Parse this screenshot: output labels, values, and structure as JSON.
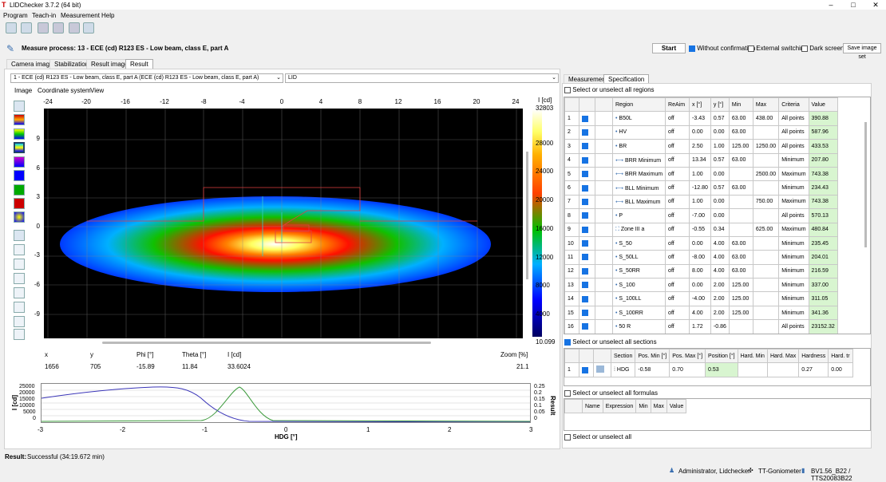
{
  "app": {
    "title": "LIDChecker 3.7.2 (64 bit)"
  },
  "menu": [
    "Program",
    "Teach-in",
    "Measurement",
    "Help"
  ],
  "process": {
    "label": "Measure process: 13 - ECE (cd) R123 ES - Low beam, class E, part A",
    "start": "Start",
    "without_confirmation": "Without confirmation",
    "external_switching": "External switching",
    "dark_screens": "Dark screens",
    "save_image_set": "Save image set"
  },
  "left_tabs": [
    "Camera image",
    "Stabilization",
    "Result image",
    "Result"
  ],
  "selector": {
    "value": "1 - ECE (cd) R123 ES - Low beam, class E, part A (ECE (cd) R123 ES - Low beam, class E, part A)",
    "lid": "LID"
  },
  "subtabs": [
    "Image",
    "Coordinate system",
    "View"
  ],
  "plot": {
    "x_ticks": [
      "-24",
      "-20",
      "-16",
      "-12",
      "-8",
      "-4",
      "0",
      "4",
      "8",
      "12",
      "16",
      "20",
      "24"
    ],
    "y_ticks": [
      "9",
      "6",
      "3",
      "0",
      "-3",
      "-6",
      "-9"
    ],
    "unit": "I [cd]",
    "colorbar": [
      "32803",
      "28000",
      "24000",
      "20000",
      "16000",
      "12000",
      "8000",
      "4000",
      "10.099"
    ]
  },
  "info": {
    "headers": [
      "x",
      "y",
      "Phi [°]",
      "Theta [°]",
      "I [cd]",
      "Zoom [%]"
    ],
    "values": [
      "1656",
      "705",
      "-15.89",
      "11.84",
      "33.6024",
      "21.1"
    ]
  },
  "profile": {
    "ylabel": "I [cd]",
    "y2label": "Result",
    "xlabel": "HDG [°]",
    "x_ticks": [
      "-3",
      "-2",
      "-1",
      "0",
      "1",
      "2",
      "3"
    ],
    "y_ticks": [
      "25000",
      "20000",
      "15000",
      "10000",
      "5000",
      "0"
    ],
    "y2_ticks": [
      "0.25",
      "0.2",
      "0.15",
      "0.1",
      "0.05",
      "0"
    ],
    "colors": {
      "intensity": "#3a35b8",
      "result": "#3c9a3c"
    }
  },
  "right_tabs": [
    "Measurement",
    "Specification"
  ],
  "spec": {
    "select_regions": "Select or unselect all regions",
    "headers": [
      "Region",
      "ReAim",
      "x [°]",
      "y [°]",
      "Min",
      "Max",
      "Criteria",
      "Value"
    ],
    "rows": [
      [
        "1",
        "B50L",
        "off",
        "-3.43",
        "0.57",
        "63.00",
        "438.00",
        "All points",
        "390.88"
      ],
      [
        "2",
        "HV",
        "off",
        "0.00",
        "0.00",
        "63.00",
        "",
        "All points",
        "587.96"
      ],
      [
        "3",
        "BR",
        "off",
        "2.50",
        "1.00",
        "125.00",
        "1250.00",
        "All points",
        "433.53"
      ],
      [
        "4",
        "BRR Minimum",
        "off",
        "13.34",
        "0.57",
        "63.00",
        "",
        "Minimum",
        "207.80"
      ],
      [
        "5",
        "BRR Maximum",
        "off",
        "1.00",
        "0.00",
        "",
        "2500.00",
        "Maximum",
        "743.38"
      ],
      [
        "6",
        "BLL Minimum",
        "off",
        "-12.80",
        "0.57",
        "63.00",
        "",
        "Minimum",
        "234.43"
      ],
      [
        "7",
        "BLL Maximum",
        "off",
        "1.00",
        "0.00",
        "",
        "750.00",
        "Maximum",
        "743.38"
      ],
      [
        "8",
        "P",
        "off",
        "-7.00",
        "0.00",
        "",
        "",
        "All points",
        "570.13"
      ],
      [
        "9",
        "Zone III a",
        "off",
        "-0.55",
        "0.34",
        "",
        "625.00",
        "Maximum",
        "480.84"
      ],
      [
        "10",
        "S_50",
        "off",
        "0.00",
        "4.00",
        "63.00",
        "",
        "Minimum",
        "235.45"
      ],
      [
        "11",
        "S_50LL",
        "off",
        "-8.00",
        "4.00",
        "63.00",
        "",
        "Minimum",
        "204.01"
      ],
      [
        "12",
        "S_50RR",
        "off",
        "8.00",
        "4.00",
        "63.00",
        "",
        "Minimum",
        "216.59"
      ],
      [
        "13",
        "S_100",
        "off",
        "0.00",
        "2.00",
        "125.00",
        "",
        "Minimum",
        "337.00"
      ],
      [
        "14",
        "S_100LL",
        "off",
        "-4.00",
        "2.00",
        "125.00",
        "",
        "Minimum",
        "311.05"
      ],
      [
        "15",
        "S_100RR",
        "off",
        "4.00",
        "2.00",
        "125.00",
        "",
        "Minimum",
        "341.36"
      ],
      [
        "16",
        "50 R",
        "off",
        "1.72",
        "-0.86",
        "",
        "",
        "All points",
        "23152.32"
      ]
    ],
    "select_sections": "Select or unselect all sections",
    "section_headers": [
      "Section",
      "Pos. Min [°]",
      "Pos. Max [°]",
      "Position [°]",
      "Hard. Min",
      "Hard. Max",
      "Hardness",
      "Hard. tr"
    ],
    "section_row": [
      "1",
      "HDG",
      "-0.58",
      "0.70",
      "0.53",
      "",
      "",
      "0.27",
      "0.00"
    ],
    "select_formulas": "Select or unselect all formulas",
    "formula_headers": [
      "Name",
      "Expression",
      "Min",
      "Max",
      "Value"
    ],
    "select_all": "Select or unselect all"
  },
  "status": {
    "label": "Result:",
    "text": "Successful (34:19.672 min)",
    "user": "Administrator, Lidchecker",
    "device": "TT-Goniometer",
    "version": "BV1.56_B22 / TTS20083B22"
  }
}
